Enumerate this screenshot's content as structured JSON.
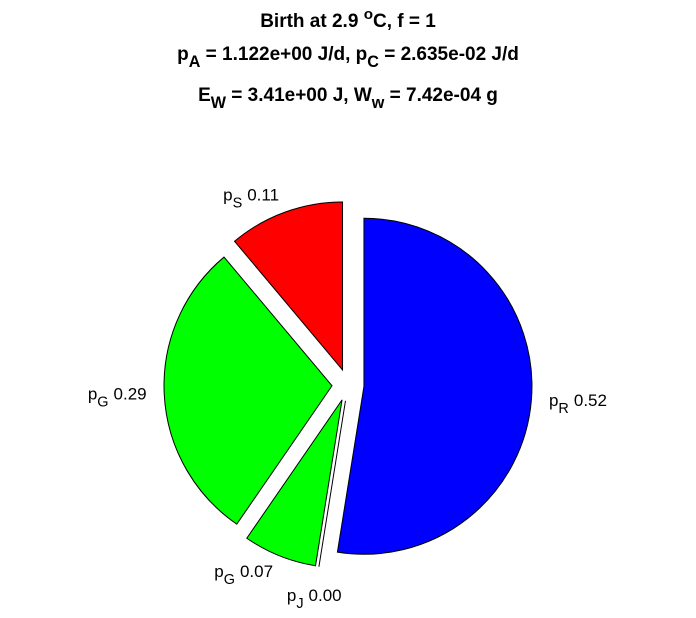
{
  "chart_data": {
    "type": "pie",
    "title": [
      [
        "Birth at 2.9 ",
        {
          "sup": "o"
        },
        "C, f = 1"
      ],
      [
        "p",
        {
          "sub": "A"
        },
        " = 1.122e+00 J/d, p",
        {
          "sub": "C"
        },
        " = 2.635e-02 J/d"
      ],
      [
        "E",
        {
          "sub": "W"
        },
        " = 3.41e+00 J, W",
        {
          "sub": "w"
        },
        " = 7.42e-04 g"
      ]
    ],
    "categories": [
      [
        "p",
        {
          "sub": "R"
        }
      ],
      [
        "p",
        {
          "sub": "J"
        }
      ],
      [
        "p",
        {
          "sub": "G"
        }
      ],
      [
        "p",
        {
          "sub": "G"
        }
      ],
      [
        "p",
        {
          "sub": "S"
        }
      ]
    ],
    "values": [
      0.52,
      0,
      0.07,
      0.29,
      0.11
    ],
    "value_labels": [
      "0.52",
      "0.00",
      "0.07",
      "0.29",
      "0.11"
    ],
    "colors": [
      "#0000ff",
      "#ffffff",
      "#00ff00",
      "#00ff00",
      "#ff0000"
    ]
  }
}
